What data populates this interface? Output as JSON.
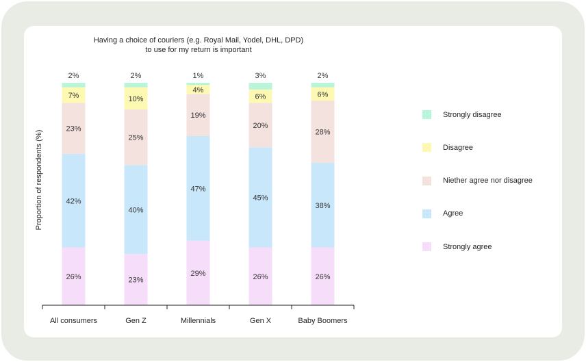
{
  "chart_data": {
    "type": "bar",
    "stacked": true,
    "title": "Having a choice of couriers (e.g. Royal Mail, Yodel, DHL, DPD) to use for my return is important",
    "title_lines": [
      "Having a choice of couriers (e.g. Royal Mail, Yodel, DHL, DPD)",
      "to use for my return is important"
    ],
    "ylabel": "Proportion of respondents (%)",
    "xlabel": "",
    "ylim": [
      0,
      100
    ],
    "grid": false,
    "legend_placement": "right",
    "categories": [
      "All consumers",
      "Gen Z",
      "Millennials",
      "Gen X",
      "Baby Boomers"
    ],
    "series": [
      {
        "name": "Strongly agree",
        "color": "#f6ddf9",
        "values": [
          26,
          23,
          29,
          26,
          26
        ]
      },
      {
        "name": "Agree",
        "color": "#c9e7fb",
        "values": [
          42,
          40,
          47,
          45,
          38
        ]
      },
      {
        "name": "Niether agree nor disagree",
        "color": "#f4e2df",
        "values": [
          23,
          25,
          19,
          20,
          28
        ]
      },
      {
        "name": "Disagree",
        "color": "#fdf9b3",
        "values": [
          7,
          10,
          4,
          6,
          6
        ]
      },
      {
        "name": "Strongly disagree",
        "color": "#b9f5d9",
        "values": [
          2,
          2,
          1,
          3,
          2
        ]
      }
    ],
    "legend_order": [
      "Strongly disagree",
      "Disagree",
      "Niether agree nor disagree",
      "Agree",
      "Strongly agree"
    ]
  }
}
